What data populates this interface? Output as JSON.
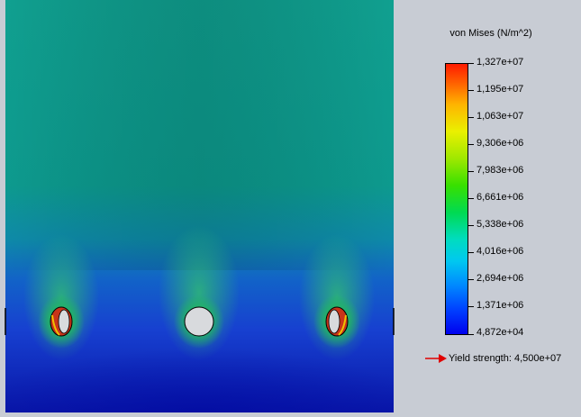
{
  "legend": {
    "title": "von Mises (N/m^2)",
    "ticks": [
      "1,327e+07",
      "1,195e+07",
      "1,063e+07",
      "9,306e+06",
      "7,983e+06",
      "6,661e+06",
      "5,338e+06",
      "4,016e+06",
      "2,694e+06",
      "1,371e+06",
      "4,872e+04"
    ],
    "yield_label": "Yield strength: 4,500e+07"
  },
  "colors": {
    "background": "#c8ccd4",
    "plate_top": "#0e9e92",
    "plate_low": "#1a3fd0",
    "plate_bottom": "#0a18b0",
    "hotspot": "#d03a10",
    "hole": "#d8dadd",
    "yield_arrow": "#e00000"
  },
  "icons": {
    "yield_marker": "red-arrow-icon"
  }
}
